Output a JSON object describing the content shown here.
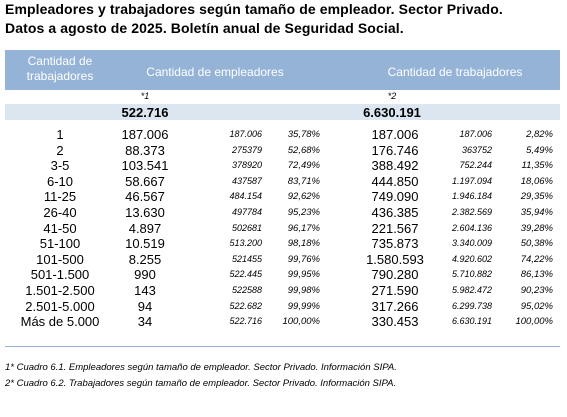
{
  "title_lines": [
    "Empleadores y trabajadores según tamaño de empleador. Sector Privado.",
    "Datos a agosto de 2025. Boletín anual de Seguridad Social."
  ],
  "header": {
    "size": "Cantidad de trabajadores",
    "employers": "Cantidad de empleadores",
    "workers": "Cantidad de trabajadores"
  },
  "notes_row": [
    "*1",
    "*2"
  ],
  "totals": [
    "522.716",
    "6.630.191"
  ],
  "rows": [
    [
      "1",
      "187.006",
      "187.006",
      "35,78%",
      "187.006",
      "187.006",
      "2,82%"
    ],
    [
      "2",
      "88.373",
      "275379",
      "52,68%",
      "176.746",
      "363752",
      "5,49%"
    ],
    [
      "3-5",
      "103.541",
      "378920",
      "72,49%",
      "388.492",
      "752.244",
      "11,35%"
    ],
    [
      "6-10",
      "58.667",
      "437587",
      "83,71%",
      "444.850",
      "1.197.094",
      "18,06%"
    ],
    [
      "11-25",
      "46.567",
      "484.154",
      "92,62%",
      "749.090",
      "1.946.184",
      "29,35%"
    ],
    [
      "26-40",
      "13.630",
      "497784",
      "95,23%",
      "436.385",
      "2.382.569",
      "35,94%"
    ],
    [
      "41-50",
      "4.897",
      "502681",
      "96,17%",
      "221.567",
      "2.604.136",
      "39,28%"
    ],
    [
      "51-100",
      "10.519",
      "513.200",
      "98,18%",
      "735.873",
      "3.340.009",
      "50,38%"
    ],
    [
      "101-500",
      "8.255",
      "521455",
      "99,76%",
      "1.580.593",
      "4.920.602",
      "74,22%"
    ],
    [
      "501-1.500",
      "990",
      "522.445",
      "99,95%",
      "790.280",
      "5.710.882",
      "86,13%"
    ],
    [
      "1.501-2.500",
      "143",
      "522588",
      "99,98%",
      "271.590",
      "5.982.472",
      "90,23%"
    ],
    [
      "2.501-5.000",
      "94",
      "522.682",
      "99,99%",
      "317.266",
      "6.299.738",
      "95,02%"
    ],
    [
      "Más de 5.000",
      "34",
      "522.716",
      "100,00%",
      "330.453",
      "6.630.191",
      "100,00%"
    ]
  ],
  "footnotes": [
    "1* Cuadro 6.1. Empleadores según tamaño de empleador. Sector Privado. Información SIPA.",
    "2* Cuadro 6.2. Trabajadores según tamaño de empleador. Sector Privado. Información SIPA."
  ]
}
